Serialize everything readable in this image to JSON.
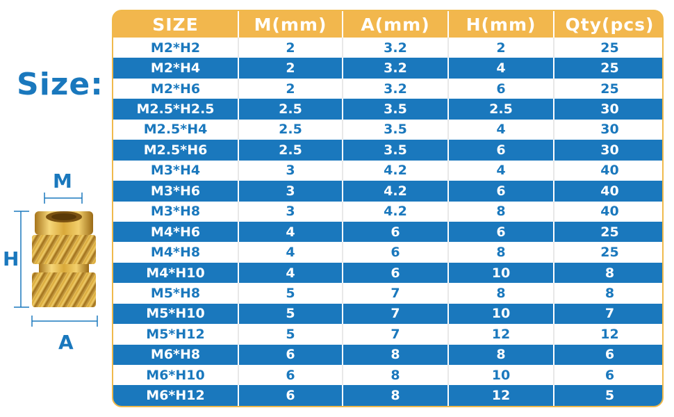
{
  "size_label": "Size:",
  "diagram": {
    "label_m": "M",
    "label_h": "H",
    "label_a": "A"
  },
  "colors": {
    "header_bg": "#f2b74d",
    "accent_blue": "#1a78bd",
    "light_row": "#ffffff"
  },
  "table": {
    "headers": [
      "SIZE",
      "M(mm)",
      "A(mm)",
      "H(mm)",
      "Qty(pcs)"
    ],
    "rows": [
      [
        "M2*H2",
        "2",
        "3.2",
        "2",
        "25"
      ],
      [
        "M2*H4",
        "2",
        "3.2",
        "4",
        "25"
      ],
      [
        "M2*H6",
        "2",
        "3.2",
        "6",
        "25"
      ],
      [
        "M2.5*H2.5",
        "2.5",
        "3.5",
        "2.5",
        "30"
      ],
      [
        "M2.5*H4",
        "2.5",
        "3.5",
        "4",
        "30"
      ],
      [
        "M2.5*H6",
        "2.5",
        "3.5",
        "6",
        "30"
      ],
      [
        "M3*H4",
        "3",
        "4.2",
        "4",
        "40"
      ],
      [
        "M3*H6",
        "3",
        "4.2",
        "6",
        "40"
      ],
      [
        "M3*H8",
        "3",
        "4.2",
        "8",
        "40"
      ],
      [
        "M4*H6",
        "4",
        "6",
        "6",
        "25"
      ],
      [
        "M4*H8",
        "4",
        "6",
        "8",
        "25"
      ],
      [
        "M4*H10",
        "4",
        "6",
        "10",
        "8"
      ],
      [
        "M5*H8",
        "5",
        "7",
        "8",
        "8"
      ],
      [
        "M5*H10",
        "5",
        "7",
        "10",
        "7"
      ],
      [
        "M5*H12",
        "5",
        "7",
        "12",
        "12"
      ],
      [
        "M6*H8",
        "6",
        "8",
        "8",
        "6"
      ],
      [
        "M6*H10",
        "6",
        "8",
        "10",
        "6"
      ],
      [
        "M6*H12",
        "6",
        "8",
        "12",
        "5"
      ]
    ]
  }
}
